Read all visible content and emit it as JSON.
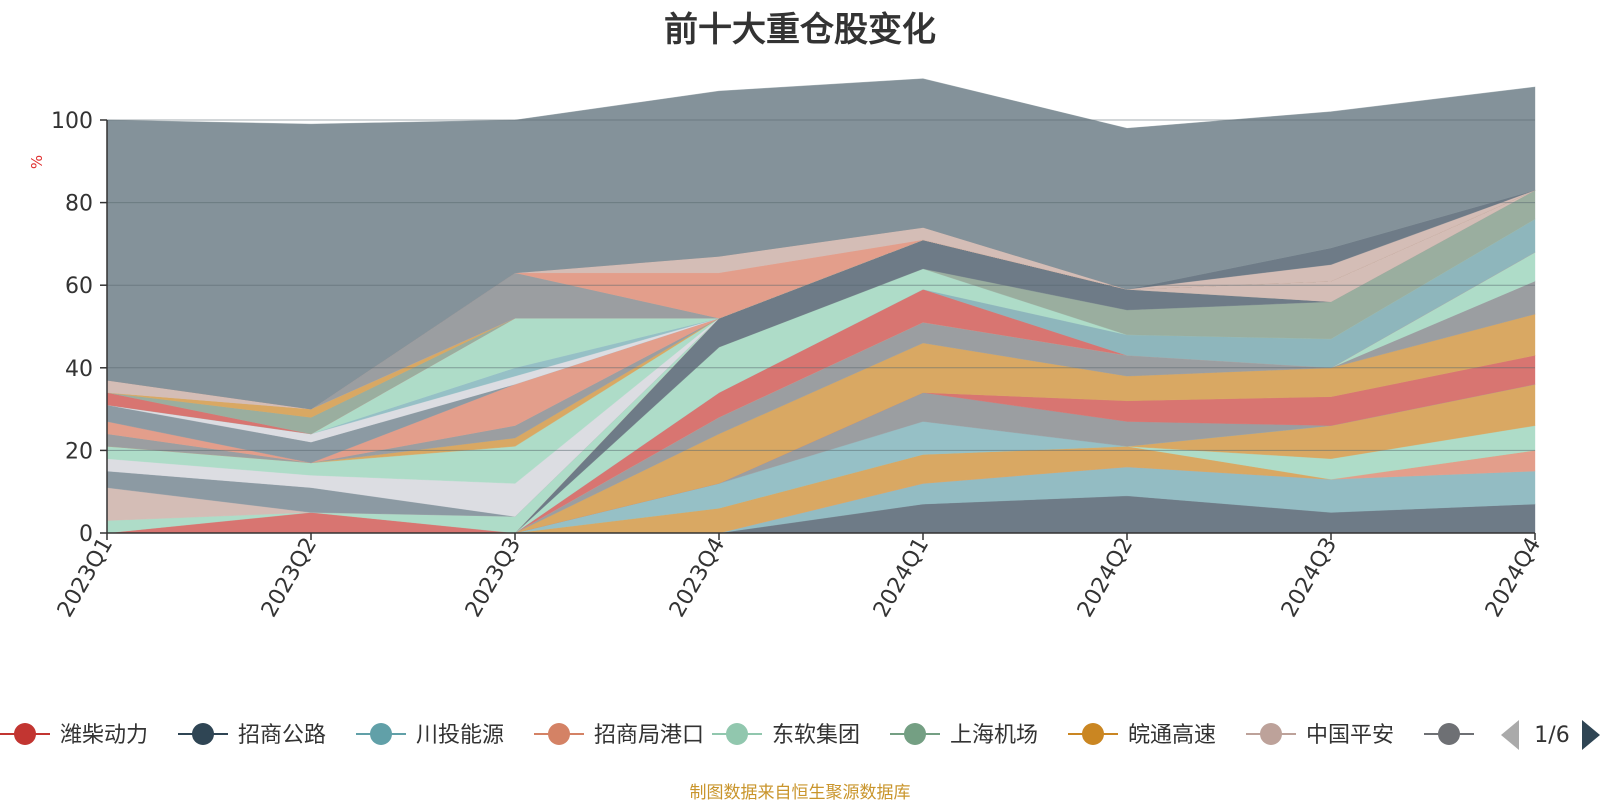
{
  "chart_data": {
    "type": "area",
    "title": "前十大重仓股变化",
    "ylabel": "%",
    "ylim": [
      0,
      100
    ],
    "yticks": [
      0,
      20,
      40,
      60,
      80,
      100
    ],
    "grid": true,
    "stacked": true,
    "categories": [
      "2023Q1",
      "2023Q2",
      "2023Q3",
      "2023Q4",
      "2024Q1",
      "2024Q2",
      "2024Q3",
      "2024Q4"
    ],
    "series": [
      {
        "name": "",
        "color": "#6e7b87",
        "values": [
          0,
          0,
          0,
          0,
          7,
          9,
          5,
          7
        ]
      },
      {
        "name": "川投能源",
        "color": "#93bcc3",
        "values": [
          0,
          0,
          0,
          0,
          5,
          7,
          8,
          8
        ]
      },
      {
        "name": "",
        "color": "#e39e8b",
        "values": [
          0,
          0,
          0,
          0,
          0,
          0,
          0,
          5
        ]
      },
      {
        "name": "",
        "color": "#d9a863",
        "values": [
          0,
          0,
          0,
          6,
          7,
          5,
          0,
          0
        ]
      },
      {
        "name": "",
        "color": "#aedcc8",
        "values": [
          0,
          0,
          0,
          0,
          0,
          0,
          5,
          6
        ]
      },
      {
        "name": "",
        "color": "#d9a863",
        "values": [
          0,
          0,
          0,
          0,
          0,
          0,
          8,
          10
        ]
      },
      {
        "name": "",
        "color": "#96c0c6",
        "values": [
          0,
          0,
          0,
          6,
          8,
          0,
          0,
          0
        ]
      },
      {
        "name": "",
        "color": "#9b9ea1",
        "values": [
          0,
          0,
          0,
          0,
          7,
          6,
          0,
          0
        ]
      },
      {
        "name": "",
        "color": "#d87571",
        "values": [
          0,
          0,
          0,
          0,
          0,
          5,
          7,
          7
        ]
      },
      {
        "name": "",
        "color": "#d9a863",
        "values": [
          0,
          0,
          0,
          12,
          12,
          6,
          7,
          10
        ]
      },
      {
        "name": "",
        "color": "#9b9ea1",
        "values": [
          0,
          0,
          0,
          4,
          5,
          5,
          0,
          8
        ]
      },
      {
        "name": "",
        "color": "#aedcc8",
        "values": [
          0,
          0,
          0,
          0,
          0,
          0,
          0,
          7
        ]
      },
      {
        "name": "",
        "color": "#d87571",
        "values": [
          0,
          0,
          0,
          6,
          8,
          0,
          0,
          0
        ]
      },
      {
        "name": "",
        "color": "#8eb6bc",
        "values": [
          0,
          0,
          0,
          0,
          0,
          5,
          7,
          8
        ]
      },
      {
        "name": "",
        "color": "#aedcc8",
        "values": [
          0,
          0,
          0,
          11,
          5,
          0,
          0,
          0
        ]
      },
      {
        "name": "",
        "color": "#9aae9f",
        "values": [
          0,
          0,
          0,
          0,
          0,
          6,
          9,
          7
        ]
      },
      {
        "name": "",
        "color": "#6e7b87",
        "values": [
          0,
          0,
          0,
          7,
          7,
          5,
          0,
          0
        ]
      },
      {
        "name": "潍柴动力",
        "color": "#d87571",
        "values": [
          0,
          5,
          0,
          0,
          0,
          0,
          0,
          0
        ]
      },
      {
        "name": "",
        "color": "#aedcc8",
        "values": [
          3,
          0,
          4,
          0,
          0,
          0,
          0,
          0
        ]
      },
      {
        "name": "",
        "color": "#d4bdb6",
        "values": [
          8,
          0,
          0,
          0,
          0,
          0,
          5,
          0
        ]
      },
      {
        "name": "",
        "color": "#8c9aa3",
        "values": [
          4,
          6,
          0,
          0,
          0,
          0,
          0,
          0
        ]
      },
      {
        "name": "",
        "color": "#dcdde2",
        "values": [
          3,
          3,
          8,
          0,
          0,
          0,
          0,
          0
        ]
      },
      {
        "name": "",
        "color": "#aedcc8",
        "values": [
          3,
          3,
          9,
          0,
          0,
          0,
          0,
          0
        ]
      },
      {
        "name": "",
        "color": "#d9a863",
        "values": [
          0,
          0,
          2,
          0,
          0,
          0,
          0,
          0
        ]
      },
      {
        "name": "",
        "color": "#9b9ea1",
        "values": [
          3,
          0,
          3,
          0,
          0,
          0,
          0,
          0
        ]
      },
      {
        "name": "",
        "color": "#e39e8b",
        "values": [
          3,
          0,
          10,
          0,
          0,
          0,
          0,
          0
        ]
      },
      {
        "name": "",
        "color": "#8c9aa3",
        "values": [
          4,
          5,
          0,
          0,
          0,
          0,
          0,
          0
        ]
      },
      {
        "name": "",
        "color": "#dcdde2",
        "values": [
          0,
          2,
          2,
          0,
          0,
          0,
          0,
          0
        ]
      },
      {
        "name": "",
        "color": "#96c0c6",
        "values": [
          0,
          0,
          2,
          0,
          0,
          0,
          0,
          0
        ]
      },
      {
        "name": "",
        "color": "#aedcc8",
        "values": [
          0,
          0,
          12,
          0,
          0,
          0,
          0,
          0
        ]
      },
      {
        "name": "",
        "color": "#d87571",
        "values": [
          3,
          0,
          0,
          0,
          0,
          0,
          0,
          0
        ]
      },
      {
        "name": "",
        "color": "#9aae9f",
        "values": [
          0,
          4,
          0,
          0,
          0,
          0,
          0,
          0
        ]
      },
      {
        "name": "",
        "color": "#d9a863",
        "values": [
          0,
          2,
          0,
          0,
          0,
          0,
          0,
          0
        ]
      },
      {
        "name": "",
        "color": "#d4bdb6",
        "values": [
          3,
          0,
          0,
          0,
          0,
          0,
          0,
          0
        ]
      },
      {
        "name": "",
        "color": "#9b9ea1",
        "values": [
          0,
          0,
          11,
          0,
          0,
          0,
          0,
          0
        ]
      },
      {
        "name": "",
        "color": "#e39e8b",
        "values": [
          0,
          0,
          0,
          11,
          0,
          0,
          0,
          0
        ]
      },
      {
        "name": "",
        "color": "#d4bdb6",
        "values": [
          0,
          0,
          0,
          4,
          3,
          0,
          0,
          0
        ]
      },
      {
        "name": "",
        "color": "#d4bdb6",
        "values": [
          0,
          0,
          0,
          0,
          0,
          0,
          4,
          0
        ]
      },
      {
        "name": "",
        "color": "#6e7b87",
        "values": [
          0,
          0,
          0,
          0,
          0,
          0,
          4,
          0
        ]
      },
      {
        "name": "",
        "color": "#84929a",
        "values": [
          63,
          69,
          37,
          40,
          36,
          39,
          33,
          25
        ]
      }
    ]
  },
  "legend": {
    "items": [
      {
        "label": "潍柴动力",
        "color": "#c23531"
      },
      {
        "label": "招商公路",
        "color": "#2f4554"
      },
      {
        "label": "川投能源",
        "color": "#61a0a8"
      },
      {
        "label": "招商局港口",
        "color": "#d48265"
      },
      {
        "label": "东软集团",
        "color": "#91c7ae"
      },
      {
        "label": "上海机场",
        "color": "#749f83"
      },
      {
        "label": "皖通高速",
        "color": "#ca8622"
      },
      {
        "label": "中国平安",
        "color": "#bda29a"
      },
      {
        "label": "",
        "color": "#6e7074"
      }
    ],
    "page": "1/6"
  },
  "footer_note": "制图数据来自恒生聚源数据库"
}
